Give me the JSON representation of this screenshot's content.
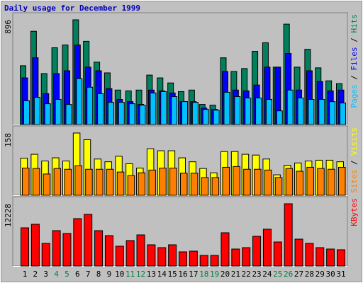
{
  "chart_data": [
    {
      "type": "bar",
      "title": "Daily usage for December 1999",
      "ylim": [
        0,
        896
      ],
      "yticks": [
        896
      ],
      "legend_separator": " / ",
      "series": [
        {
          "name": "Hits",
          "color": "#00805c",
          "values": [
            503,
            798,
            436,
            657,
            681,
            896,
            712,
            534,
            442,
            295,
            288,
            295,
            423,
            399,
            356,
            282,
            295,
            172,
            166,
            571,
            454,
            479,
            626,
            700,
            491,
            859,
            491,
            644,
            485,
            374,
            350
          ]
        },
        {
          "name": "Files",
          "color": "#0000ff",
          "values": [
            399,
            571,
            264,
            436,
            460,
            681,
            491,
            460,
            307,
            215,
            196,
            172,
            295,
            288,
            270,
            196,
            196,
            141,
            129,
            454,
            295,
            288,
            338,
            491,
            491,
            608,
            295,
            460,
            368,
            288,
            295
          ]
        },
        {
          "name": "Pages",
          "color": "#00c0ff",
          "values": [
            203,
            233,
            178,
            215,
            172,
            393,
            319,
            264,
            190,
            190,
            178,
            166,
            270,
            282,
            239,
            196,
            190,
            129,
            123,
            276,
            239,
            227,
            227,
            215,
            117,
            295,
            227,
            215,
            215,
            196,
            184
          ]
        }
      ]
    },
    {
      "type": "bar",
      "ylim": [
        0,
        158
      ],
      "yticks": [
        158
      ],
      "legend_separator": " / ",
      "series": [
        {
          "name": "Visits",
          "color": "#ffff00",
          "values": [
            94,
            104,
            87,
            95,
            87,
            158,
            141,
            92,
            85,
            99,
            80,
            69,
            118,
            113,
            113,
            95,
            85,
            68,
            57,
            111,
            111,
            104,
            102,
            92,
            52,
            76,
            82,
            87,
            89,
            89,
            85
          ]
        },
        {
          "name": "Sites",
          "color": "#ff8000",
          "values": [
            69,
            68,
            54,
            68,
            66,
            75,
            66,
            66,
            66,
            59,
            50,
            57,
            64,
            69,
            69,
            56,
            56,
            45,
            45,
            71,
            73,
            66,
            66,
            64,
            45,
            68,
            61,
            71,
            68,
            66,
            71
          ]
        }
      ]
    },
    {
      "type": "bar",
      "ylim": [
        0,
        12228
      ],
      "yticks": [
        12228
      ],
      "categories": [
        "1",
        "2",
        "3",
        "4",
        "5",
        "6",
        "7",
        "8",
        "9",
        "10",
        "11",
        "12",
        "13",
        "14",
        "15",
        "16",
        "17",
        "18",
        "19",
        "20",
        "21",
        "22",
        "23",
        "24",
        "25",
        "26",
        "27",
        "28",
        "29",
        "30",
        "31"
      ],
      "category_colors": [
        "#000000",
        "#000000",
        "#000000",
        "#008040",
        "#008040",
        "#000000",
        "#000000",
        "#000000",
        "#000000",
        "#000000",
        "#008040",
        "#008040",
        "#000000",
        "#000000",
        "#000000",
        "#000000",
        "#000000",
        "#008040",
        "#008040",
        "#000000",
        "#000000",
        "#000000",
        "#000000",
        "#000000",
        "#008040",
        "#008040",
        "#000000",
        "#000000",
        "#000000",
        "#000000",
        "#000000"
      ],
      "series": [
        {
          "name": "KBytes",
          "color": "#ff0000",
          "values": [
            7504,
            8201,
            4448,
            6950,
            6394,
            9313,
            10147,
            6950,
            5977,
            3892,
            5004,
            6116,
            4170,
            3614,
            4170,
            2780,
            2919,
            2085,
            2085,
            6533,
            3336,
            3614,
            5838,
            7228,
            4726,
            12228,
            5282,
            4448,
            3614,
            3336,
            3197
          ]
        }
      ]
    }
  ]
}
